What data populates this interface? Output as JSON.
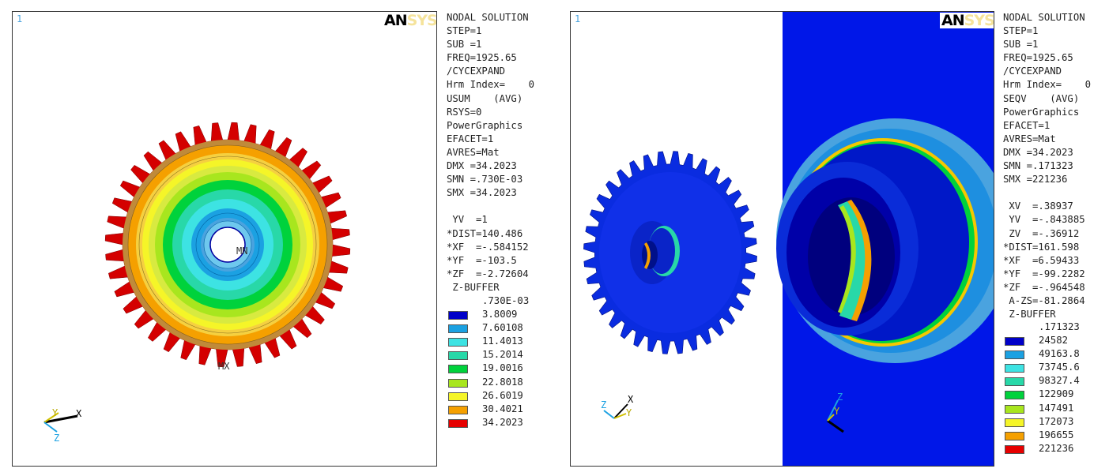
{
  "left": {
    "window_number": "1",
    "logo": {
      "an": "AN",
      "sys": "SYS"
    },
    "info_lines": [
      "NODAL SOLUTION",
      "STEP=1",
      "SUB =1",
      "FREQ=1925.65",
      "/CYCEXPAND",
      "Hrm Index=    0",
      "USUM    (AVG)",
      "RSYS=0",
      "PowerGraphics",
      "EFACET=1",
      "AVRES=Mat",
      "DMX =34.2023",
      "SMN =.730E-03",
      "SMX =34.2023",
      "",
      " YV  =1",
      "*DIST=140.486",
      "*XF  =-.584152",
      "*YF  =-103.5",
      "*ZF  =-2.72604",
      " Z-BUFFER"
    ],
    "legend_top_value": ".730E-03",
    "legend": [
      {
        "value": "3.8009",
        "color": "#0000c8"
      },
      {
        "value": "7.60108",
        "color": "#1ba1e2"
      },
      {
        "value": "11.4013",
        "color": "#3de3e3"
      },
      {
        "value": "15.2014",
        "color": "#28d8a8"
      },
      {
        "value": "19.0016",
        "color": "#00d23c"
      },
      {
        "value": "22.8018",
        "color": "#a8e61e"
      },
      {
        "value": "26.6019",
        "color": "#f5f528"
      },
      {
        "value": "30.4021",
        "color": "#f5a000"
      },
      {
        "value": "34.2023",
        "color": "#e60000"
      }
    ],
    "mn_label": "MN",
    "mx_label": "MX",
    "triad": {
      "y": "Y",
      "x": "X",
      "z": "Z"
    }
  },
  "right": {
    "window_number": "1",
    "logo": {
      "an": "AN",
      "sys": "SYS"
    },
    "info_lines": [
      "NODAL SOLUTION",
      "STEP=1",
      "SUB =1",
      "FREQ=1925.65",
      "/CYCEXPAND",
      "Hrm Index=    0",
      "SEQV    (AVG)",
      "PowerGraphics",
      "EFACET=1",
      "AVRES=Mat",
      "DMX =34.2023",
      "SMN =.171323",
      "SMX =221236",
      "",
      " XV  =.38937",
      " YV  =-.843885",
      " ZV  =-.36912",
      "*DIST=161.598",
      "*XF  =6.59433",
      "*YF  =-99.2282",
      "*ZF  =-.964548",
      " A-ZS=-81.2864",
      " Z-BUFFER"
    ],
    "legend_top_value": ".171323",
    "legend": [
      {
        "value": "24582",
        "color": "#0000c8"
      },
      {
        "value": "49163.8",
        "color": "#1ba1e2"
      },
      {
        "value": "73745.6",
        "color": "#3de3e3"
      },
      {
        "value": "98327.4",
        "color": "#28d8a8"
      },
      {
        "value": "122909",
        "color": "#00d23c"
      },
      {
        "value": "147491",
        "color": "#a8e61e"
      },
      {
        "value": "172073",
        "color": "#f5f528"
      },
      {
        "value": "196655",
        "color": "#f5a000"
      },
      {
        "value": "221236",
        "color": "#e60000"
      }
    ],
    "triad_left": {
      "z": "Z",
      "x": "X",
      "y": "Y"
    },
    "triad_right": {
      "z": "Z",
      "y": "Y"
    }
  }
}
